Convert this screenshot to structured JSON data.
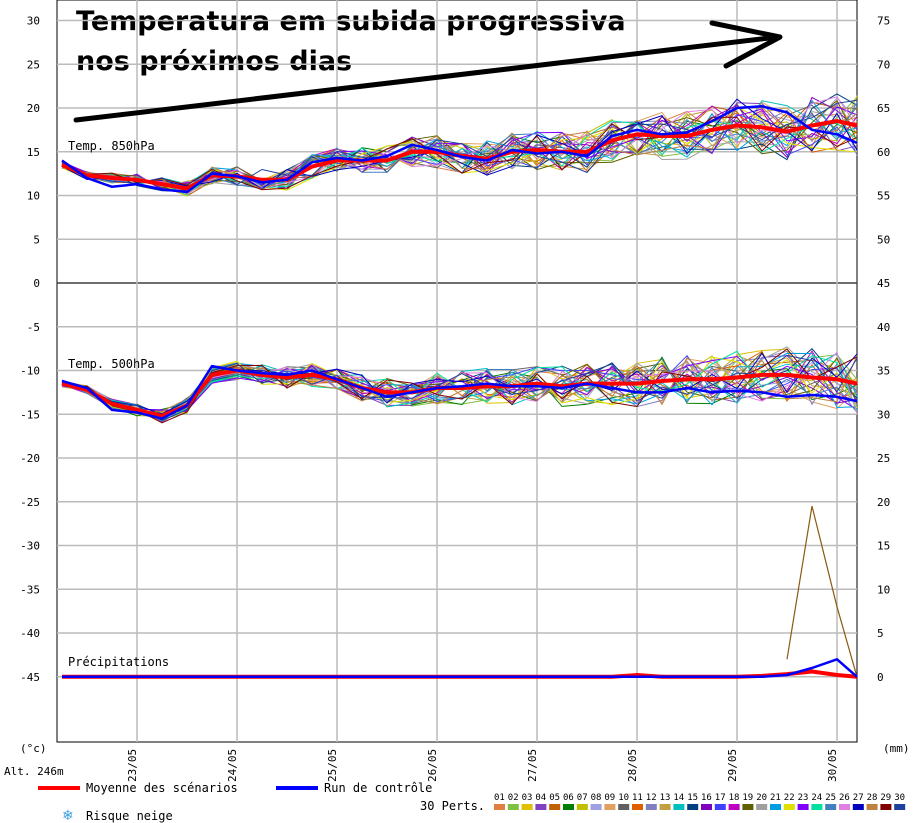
{
  "annotation": {
    "line1": "Temperatura em subida progressiva",
    "line2": "nos próximos dias"
  },
  "chart_data": {
    "type": "line",
    "left_axis": {
      "unit": "(°c)",
      "ticks": [
        30,
        25,
        20,
        15,
        10,
        5,
        0,
        -5,
        -10,
        -15,
        -20,
        -25,
        -30,
        -35,
        -40,
        -45
      ],
      "range": [
        -52,
        31
      ]
    },
    "right_axis": {
      "unit": "(mm)",
      "ticks": [
        75,
        70,
        65,
        60,
        55,
        50,
        45,
        40,
        35,
        30,
        25,
        20,
        15,
        10,
        5,
        0
      ]
    },
    "x_axis": {
      "ticks": [
        "23/05",
        "24/05",
        "25/05",
        "26/05",
        "27/05",
        "28/05",
        "29/05",
        "30/05"
      ],
      "range_days": [
        22.2,
        30.2
      ]
    },
    "altitude": "Alt. 246m",
    "panels": [
      {
        "label": "Temp. 850hPa"
      },
      {
        "label": "Temp. 500hPa"
      },
      {
        "label": "Précipitations"
      }
    ],
    "x": [
      22.25,
      22.5,
      22.75,
      23.0,
      23.25,
      23.5,
      23.75,
      24.0,
      24.25,
      24.5,
      24.75,
      25.0,
      25.25,
      25.5,
      25.75,
      26.0,
      26.25,
      26.5,
      26.75,
      27.0,
      27.25,
      27.5,
      27.75,
      28.0,
      28.25,
      28.5,
      28.75,
      29.0,
      29.25,
      29.5,
      29.75,
      30.0,
      30.2
    ],
    "series": [
      {
        "name": "Moyenne des scénarios",
        "panel": "Temp. 850hPa",
        "color": "#ff0000",
        "values": [
          13.5,
          12.3,
          12.0,
          11.8,
          11.3,
          10.8,
          12.3,
          12.2,
          11.8,
          11.8,
          13.3,
          14.0,
          14.0,
          14.0,
          15.0,
          15.0,
          14.5,
          14.2,
          15.0,
          15.2,
          15.0,
          15.0,
          16.3,
          17.0,
          16.8,
          16.8,
          17.5,
          18.0,
          17.8,
          17.3,
          18.0,
          18.5,
          18.0
        ]
      },
      {
        "name": "Run de contrôle",
        "panel": "Temp. 850hPa",
        "color": "#0000ff",
        "values": [
          14.0,
          12.0,
          11.0,
          11.3,
          10.7,
          10.4,
          12.5,
          12.2,
          11.5,
          11.8,
          13.8,
          14.3,
          14.0,
          14.5,
          15.8,
          15.2,
          14.4,
          14.0,
          15.2,
          14.8,
          15.0,
          14.5,
          16.8,
          17.5,
          17.0,
          17.2,
          18.5,
          20.0,
          20.2,
          19.5,
          17.5,
          17.0,
          16.0
        ]
      },
      {
        "name": "Moyenne des scénarios",
        "panel": "Temp. 500hPa",
        "color": "#ff0000",
        "values": [
          -11.5,
          -12.2,
          -13.8,
          -14.5,
          -15.2,
          -14.0,
          -10.5,
          -10.0,
          -10.5,
          -10.8,
          -10.5,
          -11.0,
          -12.0,
          -12.5,
          -12.5,
          -12.0,
          -12.0,
          -11.8,
          -11.8,
          -11.5,
          -11.8,
          -11.5,
          -11.5,
          -11.5,
          -11.2,
          -11.0,
          -11.0,
          -10.8,
          -10.5,
          -10.5,
          -10.8,
          -11.0,
          -11.5
        ]
      },
      {
        "name": "Run de contrôle",
        "panel": "Temp. 500hPa",
        "color": "#0000ff",
        "values": [
          -11.2,
          -12.0,
          -14.5,
          -14.8,
          -15.5,
          -14.0,
          -9.5,
          -10.0,
          -10.3,
          -10.5,
          -10.0,
          -11.0,
          -12.0,
          -13.0,
          -12.5,
          -12.0,
          -11.8,
          -11.5,
          -11.8,
          -11.8,
          -12.0,
          -11.5,
          -12.0,
          -12.5,
          -12.5,
          -12.0,
          -12.5,
          -12.3,
          -12.5,
          -13.0,
          -12.8,
          -13.0,
          -13.5
        ]
      },
      {
        "name": "Moyenne des scénarios",
        "panel": "Précipitations",
        "color": "#ff0000",
        "values": [
          0,
          0,
          0,
          0,
          0,
          0,
          0,
          0,
          0,
          0,
          0,
          0,
          0,
          0,
          0,
          0,
          0,
          0,
          0,
          0,
          0,
          0,
          0,
          0.2,
          0,
          0,
          0,
          0,
          0.1,
          0.3,
          0.6,
          0.2,
          0
        ]
      },
      {
        "name": "Run de contrôle",
        "panel": "Précipitations",
        "color": "#0000ff",
        "values": [
          0,
          0,
          0,
          0,
          0,
          0,
          0,
          0,
          0,
          0,
          0,
          0,
          0,
          0,
          0,
          0,
          0,
          0,
          0,
          0,
          0,
          0,
          0,
          0,
          0,
          0,
          0,
          0,
          0,
          0.2,
          1.0,
          2.0,
          0
        ]
      }
    ],
    "precip_peak_member": {
      "x": [
        29.5,
        29.75,
        30.0,
        30.2
      ],
      "values": [
        2.0,
        19.5,
        8.0,
        0
      ]
    },
    "grid": true
  },
  "legend": {
    "mean_label": "Moyenne des scénarios",
    "control_label": "Run de contrôle",
    "perts_label": "30 Perts.",
    "snow_label": "Risque neige",
    "mean_color": "#ff0000",
    "control_color": "#0000ff",
    "pert_numbers": [
      "01",
      "02",
      "03",
      "04",
      "05",
      "06",
      "07",
      "08",
      "09",
      "10",
      "11",
      "12",
      "13",
      "14",
      "15",
      "16",
      "17",
      "18",
      "19",
      "20",
      "21",
      "22",
      "23",
      "24",
      "25",
      "26",
      "27",
      "28",
      "29",
      "30"
    ],
    "pert_colors": [
      "#e08040",
      "#80c040",
      "#e0c000",
      "#8040c0",
      "#c06000",
      "#008000",
      "#c0c000",
      "#a0a0e0",
      "#e0a060",
      "#606060",
      "#e06000",
      "#8080c0",
      "#c0a040",
      "#00c0c0",
      "#004080",
      "#8000c0",
      "#4040ff",
      "#c000c0",
      "#606000",
      "#a0a0a0",
      "#00a0e0",
      "#e0e000",
      "#8000ff",
      "#00e0a0",
      "#4080c0",
      "#e080e0",
      "#0000c0",
      "#c08040",
      "#800000",
      "#2040a0"
    ]
  }
}
